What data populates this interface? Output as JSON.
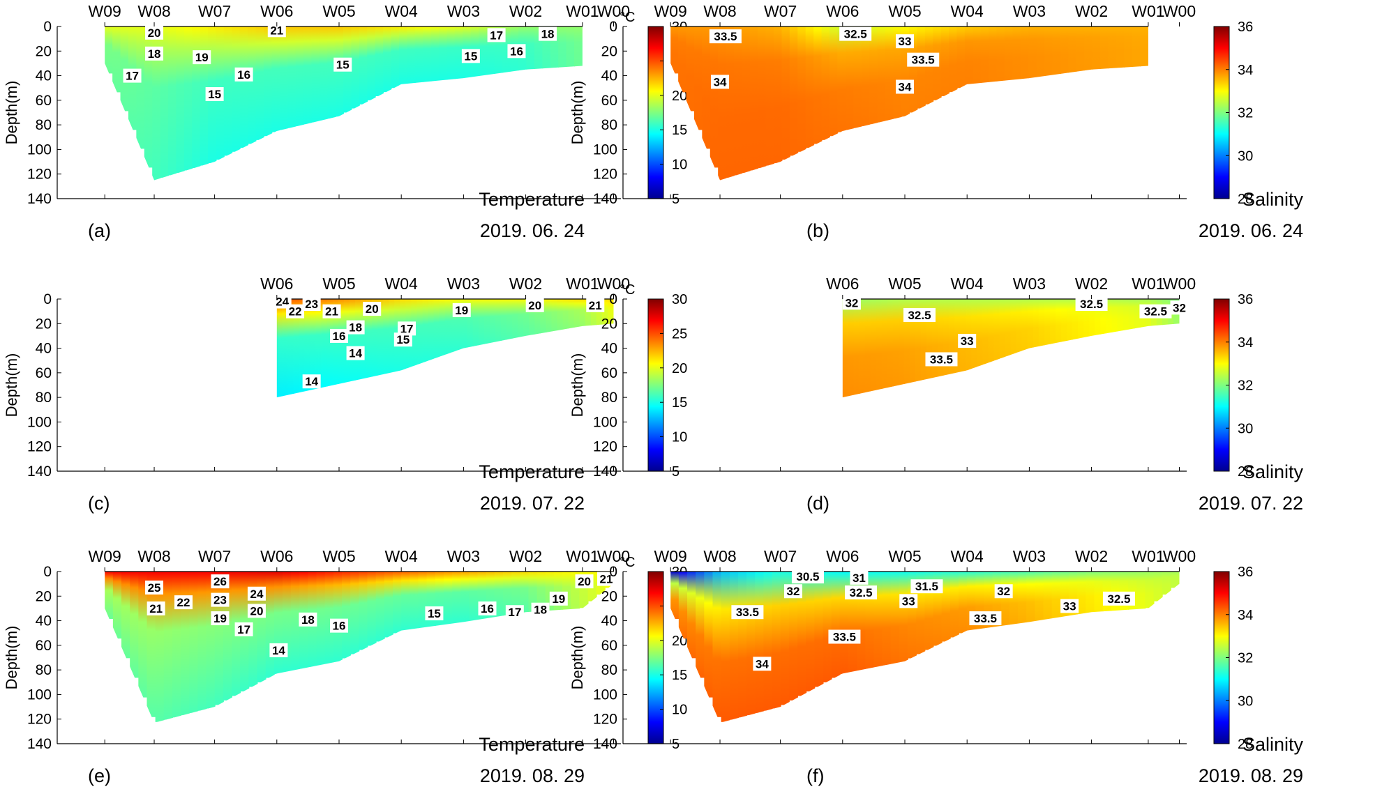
{
  "figure": {
    "stations_all": [
      "W09",
      "W08",
      "W07",
      "W06",
      "W05",
      "W04",
      "W03",
      "W02",
      "W01",
      "W00"
    ],
    "station_x_km": [
      0,
      27,
      60,
      94,
      128,
      162,
      196,
      230,
      261,
      278
    ],
    "x_extent_km": [
      -26,
      282
    ],
    "ylabel": "Depth(m)",
    "colormap": "jet"
  },
  "chart_data": [
    {
      "type": "heatmap",
      "panel": "(a)",
      "variable": "Temperature",
      "date": "2019. 06. 24",
      "stations": [
        "W09",
        "W08",
        "W07",
        "W06",
        "W05",
        "W04",
        "W03",
        "W02",
        "W01",
        "W00"
      ],
      "ylim": [
        0,
        140
      ],
      "yticks": [
        0,
        20,
        40,
        60,
        80,
        100,
        120,
        140
      ],
      "colorbar": {
        "unit": "°C",
        "range": [
          5,
          30
        ],
        "ticks": [
          5,
          10,
          15,
          20,
          25,
          30
        ]
      },
      "bottom_depth": [
        {
          "x": 0,
          "d": 30
        },
        {
          "x": 27,
          "d": 125
        },
        {
          "x": 60,
          "d": 110
        },
        {
          "x": 94,
          "d": 85
        },
        {
          "x": 128,
          "d": 73
        },
        {
          "x": 162,
          "d": 47
        },
        {
          "x": 196,
          "d": 42
        },
        {
          "x": 230,
          "d": 35
        },
        {
          "x": 261,
          "d": 32
        }
      ],
      "profiles": [
        {
          "x": 0,
          "top": 20,
          "bot": 17
        },
        {
          "x": 27,
          "top": 20,
          "bot": 16
        },
        {
          "x": 60,
          "top": 21,
          "bot": 15
        },
        {
          "x": 94,
          "top": 22,
          "bot": 15
        },
        {
          "x": 128,
          "top": 22,
          "bot": 15
        },
        {
          "x": 162,
          "top": 21,
          "bot": 15
        },
        {
          "x": 196,
          "top": 20,
          "bot": 15
        },
        {
          "x": 230,
          "top": 18,
          "bot": 15.5
        },
        {
          "x": 261,
          "top": 18,
          "bot": 17
        }
      ],
      "contour_labels": [
        {
          "v": "20",
          "x": 27,
          "d": 5
        },
        {
          "v": "21",
          "x": 94,
          "d": 3
        },
        {
          "v": "17",
          "x": 214,
          "d": 7
        },
        {
          "v": "18",
          "x": 242,
          "d": 6
        },
        {
          "v": "18",
          "x": 27,
          "d": 22
        },
        {
          "v": "19",
          "x": 53,
          "d": 25
        },
        {
          "v": "17",
          "x": 15,
          "d": 40
        },
        {
          "v": "16",
          "x": 76,
          "d": 39
        },
        {
          "v": "15",
          "x": 130,
          "d": 31
        },
        {
          "v": "15",
          "x": 200,
          "d": 24
        },
        {
          "v": "16",
          "x": 225,
          "d": 20
        },
        {
          "v": "15",
          "x": 60,
          "d": 55
        }
      ]
    },
    {
      "type": "heatmap",
      "panel": "(b)",
      "variable": "Salinity",
      "date": "2019. 06. 24",
      "stations": [
        "W09",
        "W08",
        "W07",
        "W06",
        "W05",
        "W04",
        "W03",
        "W02",
        "W01",
        "W00"
      ],
      "ylim": [
        0,
        140
      ],
      "yticks": [
        0,
        20,
        40,
        60,
        80,
        100,
        120,
        140
      ],
      "colorbar": {
        "unit": "",
        "range": [
          28,
          36
        ],
        "ticks": [
          28,
          30,
          32,
          34,
          36
        ]
      },
      "bottom_depth": [
        {
          "x": 0,
          "d": 30
        },
        {
          "x": 27,
          "d": 125
        },
        {
          "x": 60,
          "d": 110
        },
        {
          "x": 94,
          "d": 85
        },
        {
          "x": 128,
          "d": 73
        },
        {
          "x": 162,
          "d": 47
        },
        {
          "x": 196,
          "d": 42
        },
        {
          "x": 230,
          "d": 35
        },
        {
          "x": 261,
          "d": 32
        }
      ],
      "profiles": [
        {
          "x": 0,
          "top": 33.8,
          "bot": 34.1
        },
        {
          "x": 27,
          "top": 33.8,
          "bot": 34.2
        },
        {
          "x": 60,
          "top": 33.6,
          "bot": 34.2
        },
        {
          "x": 94,
          "top": 32.6,
          "bot": 34.1
        },
        {
          "x": 128,
          "top": 33.0,
          "bot": 34.0
        },
        {
          "x": 162,
          "top": 33.4,
          "bot": 34.0
        },
        {
          "x": 196,
          "top": 33.6,
          "bot": 33.9
        },
        {
          "x": 230,
          "top": 33.6,
          "bot": 33.8
        },
        {
          "x": 261,
          "top": 33.6,
          "bot": 33.7
        }
      ],
      "contour_labels": [
        {
          "v": "33.5",
          "x": 30,
          "d": 8
        },
        {
          "v": "32.5",
          "x": 101,
          "d": 6
        },
        {
          "v": "33",
          "x": 128,
          "d": 12
        },
        {
          "v": "33.5",
          "x": 138,
          "d": 27
        },
        {
          "v": "34",
          "x": 27,
          "d": 45
        },
        {
          "v": "34",
          "x": 128,
          "d": 49
        }
      ]
    },
    {
      "type": "heatmap",
      "panel": "(c)",
      "variable": "Temperature",
      "date": "2019. 07. 22",
      "stations": [
        "W06",
        "W05",
        "W04",
        "W03",
        "W02",
        "W01",
        "W00"
      ],
      "ylim": [
        0,
        140
      ],
      "yticks": [
        0,
        20,
        40,
        60,
        80,
        100,
        120,
        140
      ],
      "colorbar": {
        "unit": "°C",
        "range": [
          5,
          30
        ],
        "ticks": [
          5,
          10,
          15,
          20,
          25,
          30
        ]
      },
      "bottom_depth": [
        {
          "x": 94,
          "d": 80
        },
        {
          "x": 162,
          "d": 58
        },
        {
          "x": 196,
          "d": 40
        },
        {
          "x": 230,
          "d": 30
        },
        {
          "x": 261,
          "d": 22
        },
        {
          "x": 278,
          "d": 20
        }
      ],
      "profiles": [
        {
          "x": 94,
          "top": 25,
          "bot": 14
        },
        {
          "x": 128,
          "top": 23.5,
          "bot": 14.5
        },
        {
          "x": 162,
          "top": 21.5,
          "bot": 15
        },
        {
          "x": 196,
          "top": 20.5,
          "bot": 15.5
        },
        {
          "x": 230,
          "top": 20.5,
          "bot": 16.5
        },
        {
          "x": 261,
          "top": 21.5,
          "bot": 18
        },
        {
          "x": 278,
          "top": 21.5,
          "bot": 20
        }
      ],
      "contour_labels": [
        {
          "v": "24",
          "x": 97,
          "d": 2
        },
        {
          "v": "23",
          "x": 113,
          "d": 4
        },
        {
          "v": "22",
          "x": 104,
          "d": 10
        },
        {
          "v": "21",
          "x": 124,
          "d": 10
        },
        {
          "v": "20",
          "x": 146,
          "d": 8
        },
        {
          "v": "19",
          "x": 195,
          "d": 9
        },
        {
          "v": "20",
          "x": 235,
          "d": 5
        },
        {
          "v": "21",
          "x": 268,
          "d": 5
        },
        {
          "v": "18",
          "x": 137,
          "d": 23
        },
        {
          "v": "17",
          "x": 165,
          "d": 24
        },
        {
          "v": "16",
          "x": 128,
          "d": 30
        },
        {
          "v": "15",
          "x": 163,
          "d": 33
        },
        {
          "v": "14",
          "x": 137,
          "d": 44
        },
        {
          "v": "14",
          "x": 113,
          "d": 67
        }
      ]
    },
    {
      "type": "heatmap",
      "panel": "(d)",
      "variable": "Salinity",
      "date": "2019. 07. 22",
      "stations": [
        "W06",
        "W05",
        "W04",
        "W03",
        "W02",
        "W01",
        "W00"
      ],
      "ylim": [
        0,
        140
      ],
      "yticks": [
        0,
        20,
        40,
        60,
        80,
        100,
        120,
        140
      ],
      "colorbar": {
        "unit": "",
        "range": [
          28,
          36
        ],
        "ticks": [
          28,
          30,
          32,
          34,
          36
        ]
      },
      "bottom_depth": [
        {
          "x": 94,
          "d": 80
        },
        {
          "x": 162,
          "d": 58
        },
        {
          "x": 196,
          "d": 40
        },
        {
          "x": 230,
          "d": 30
        },
        {
          "x": 261,
          "d": 22
        },
        {
          "x": 278,
          "d": 20
        }
      ],
      "profiles": [
        {
          "x": 94,
          "top": 32.2,
          "bot": 33.9
        },
        {
          "x": 128,
          "top": 32.4,
          "bot": 33.8
        },
        {
          "x": 162,
          "top": 32.4,
          "bot": 33.6
        },
        {
          "x": 196,
          "top": 32.4,
          "bot": 33.4
        },
        {
          "x": 230,
          "top": 32.4,
          "bot": 33.1
        },
        {
          "x": 261,
          "top": 32.3,
          "bot": 32.8
        },
        {
          "x": 278,
          "top": 32.0,
          "bot": 32.2
        }
      ],
      "contour_labels": [
        {
          "v": "32",
          "x": 99,
          "d": 3
        },
        {
          "v": "32.5",
          "x": 136,
          "d": 13
        },
        {
          "v": "32.5",
          "x": 230,
          "d": 4
        },
        {
          "v": "32.5",
          "x": 265,
          "d": 10
        },
        {
          "v": "32",
          "x": 278,
          "d": 7
        },
        {
          "v": "33",
          "x": 162,
          "d": 34
        },
        {
          "v": "33.5",
          "x": 148,
          "d": 49
        }
      ]
    },
    {
      "type": "heatmap",
      "panel": "(e)",
      "variable": "Temperature",
      "date": "2019. 08. 29",
      "stations": [
        "W09",
        "W08",
        "W07",
        "W06",
        "W05",
        "W04",
        "W03",
        "W02",
        "W01",
        "W00"
      ],
      "ylim": [
        0,
        140
      ],
      "yticks": [
        0,
        20,
        40,
        60,
        80,
        100,
        120,
        140
      ],
      "colorbar": {
        "unit": "°C",
        "range": [
          5,
          30
        ],
        "ticks": [
          5,
          10,
          15,
          20,
          25,
          30
        ]
      },
      "bottom_depth": [
        {
          "x": 0,
          "d": 30
        },
        {
          "x": 27,
          "d": 123
        },
        {
          "x": 60,
          "d": 110
        },
        {
          "x": 94,
          "d": 83
        },
        {
          "x": 128,
          "d": 73
        },
        {
          "x": 162,
          "d": 48
        },
        {
          "x": 196,
          "d": 41
        },
        {
          "x": 230,
          "d": 33
        },
        {
          "x": 261,
          "d": 30
        },
        {
          "x": 278,
          "d": 10
        }
      ],
      "profiles": [
        {
          "x": 0,
          "top": 27,
          "bot": 17
        },
        {
          "x": 27,
          "top": 27,
          "bot": 16.5
        },
        {
          "x": 60,
          "top": 27,
          "bot": 16
        },
        {
          "x": 94,
          "top": 27.5,
          "bot": 15.5
        },
        {
          "x": 128,
          "top": 26,
          "bot": 15.5
        },
        {
          "x": 162,
          "top": 24.5,
          "bot": 15.5
        },
        {
          "x": 196,
          "top": 23,
          "bot": 15.5
        },
        {
          "x": 230,
          "top": 21.5,
          "bot": 16.5
        },
        {
          "x": 261,
          "top": 20.5,
          "bot": 19
        },
        {
          "x": 278,
          "top": 21,
          "bot": 20.5
        }
      ],
      "contour_labels": [
        {
          "v": "25",
          "x": 27,
          "d": 13
        },
        {
          "v": "26",
          "x": 63,
          "d": 8
        },
        {
          "v": "24",
          "x": 83,
          "d": 18
        },
        {
          "v": "22",
          "x": 43,
          "d": 25
        },
        {
          "v": "23",
          "x": 63,
          "d": 23
        },
        {
          "v": "21",
          "x": 28,
          "d": 30
        },
        {
          "v": "20",
          "x": 83,
          "d": 32
        },
        {
          "v": "19",
          "x": 63,
          "d": 38
        },
        {
          "v": "18",
          "x": 111,
          "d": 39
        },
        {
          "v": "17",
          "x": 76,
          "d": 47
        },
        {
          "v": "16",
          "x": 128,
          "d": 44
        },
        {
          "v": "15",
          "x": 180,
          "d": 34
        },
        {
          "v": "16",
          "x": 209,
          "d": 30
        },
        {
          "v": "17",
          "x": 224,
          "d": 33
        },
        {
          "v": "18",
          "x": 238,
          "d": 31
        },
        {
          "v": "19",
          "x": 248,
          "d": 22
        },
        {
          "v": "20",
          "x": 262,
          "d": 8
        },
        {
          "v": "21",
          "x": 274,
          "d": 6
        },
        {
          "v": "14",
          "x": 95,
          "d": 64
        }
      ]
    },
    {
      "type": "heatmap",
      "panel": "(f)",
      "variable": "Salinity",
      "date": "2019. 08. 29",
      "stations": [
        "W09",
        "W08",
        "W07",
        "W06",
        "W05",
        "W04",
        "W03",
        "W02",
        "W01",
        "W00"
      ],
      "ylim": [
        0,
        140
      ],
      "yticks": [
        0,
        20,
        40,
        60,
        80,
        100,
        120,
        140
      ],
      "colorbar": {
        "unit": "",
        "range": [
          28,
          36
        ],
        "ticks": [
          28,
          30,
          32,
          34,
          36
        ]
      },
      "bottom_depth": [
        {
          "x": 0,
          "d": 30
        },
        {
          "x": 27,
          "d": 123
        },
        {
          "x": 60,
          "d": 110
        },
        {
          "x": 94,
          "d": 83
        },
        {
          "x": 128,
          "d": 73
        },
        {
          "x": 162,
          "d": 48
        },
        {
          "x": 196,
          "d": 41
        },
        {
          "x": 230,
          "d": 33
        },
        {
          "x": 261,
          "d": 30
        },
        {
          "x": 278,
          "d": 10
        }
      ],
      "profiles": [
        {
          "x": 0,
          "top": 28.5,
          "bot": 34.1
        },
        {
          "x": 27,
          "top": 30.5,
          "bot": 34.3
        },
        {
          "x": 60,
          "top": 31.2,
          "bot": 34.3
        },
        {
          "x": 94,
          "top": 31.0,
          "bot": 34.3
        },
        {
          "x": 128,
          "top": 31.1,
          "bot": 34.1
        },
        {
          "x": 162,
          "top": 31.3,
          "bot": 33.9
        },
        {
          "x": 196,
          "top": 31.6,
          "bot": 33.6
        },
        {
          "x": 230,
          "top": 32.0,
          "bot": 33.2
        },
        {
          "x": 261,
          "top": 32.2,
          "bot": 32.8
        },
        {
          "x": 278,
          "top": 32.3,
          "bot": 32.5
        }
      ],
      "contour_labels": [
        {
          "v": "30.5",
          "x": 75,
          "d": 4
        },
        {
          "v": "31",
          "x": 103,
          "d": 5
        },
        {
          "v": "31.5",
          "x": 140,
          "d": 12
        },
        {
          "v": "32",
          "x": 67,
          "d": 16
        },
        {
          "v": "32.5",
          "x": 104,
          "d": 17
        },
        {
          "v": "33",
          "x": 130,
          "d": 24
        },
        {
          "v": "32",
          "x": 182,
          "d": 16
        },
        {
          "v": "32.5",
          "x": 245,
          "d": 22
        },
        {
          "v": "33",
          "x": 218,
          "d": 28
        },
        {
          "v": "33.5",
          "x": 42,
          "d": 33
        },
        {
          "v": "33.5",
          "x": 172,
          "d": 38
        },
        {
          "v": "33.5",
          "x": 95,
          "d": 53
        },
        {
          "v": "34",
          "x": 50,
          "d": 75
        }
      ]
    }
  ]
}
